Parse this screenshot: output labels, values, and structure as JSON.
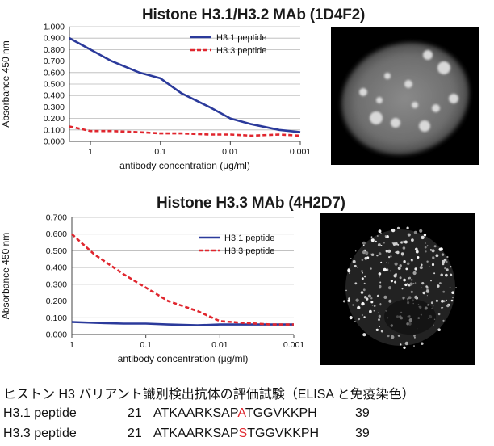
{
  "chart_data": [
    {
      "type": "line",
      "title": "Histone H3.1/H3.2 MAb (1D4F2)",
      "xlabel": "antibody concentration (μg/ml)",
      "ylabel": "Absorbance 450 nm",
      "x_scale": "log-reversed",
      "xlim": [
        2,
        0.001
      ],
      "ylim": [
        0,
        1.0
      ],
      "x_ticks": [
        "1",
        "0.1",
        "0.01",
        "0.001"
      ],
      "y_ticks": [
        "0.000",
        "0.100",
        "0.200",
        "0.300",
        "0.400",
        "0.500",
        "0.600",
        "0.700",
        "0.800",
        "0.900",
        "1.000"
      ],
      "grid": "horizontal",
      "legend_position": "top-right",
      "x": [
        2,
        1,
        0.5,
        0.2,
        0.1,
        0.05,
        0.02,
        0.01,
        0.005,
        0.002,
        0.001
      ],
      "series": [
        {
          "name": "H3.1 peptide",
          "color": "#2b3a9b",
          "style": "solid",
          "values": [
            0.9,
            0.8,
            0.7,
            0.6,
            0.55,
            0.42,
            0.3,
            0.2,
            0.15,
            0.1,
            0.08
          ]
        },
        {
          "name": "H3.3 peptide",
          "color": "#e0262e",
          "style": "dashed",
          "values": [
            0.13,
            0.09,
            0.09,
            0.08,
            0.07,
            0.07,
            0.06,
            0.06,
            0.05,
            0.06,
            0.05
          ]
        }
      ]
    },
    {
      "type": "line",
      "title": "Histone H3.3 MAb (4H2D7)",
      "xlabel": "antibody concentration (μg/ml)",
      "ylabel": "Absorbance 450 nm",
      "x_scale": "log-reversed",
      "xlim": [
        1,
        0.001
      ],
      "ylim": [
        0,
        0.7
      ],
      "x_ticks": [
        "1",
        "0.1",
        "0.01",
        "0.001"
      ],
      "y_ticks": [
        "0.000",
        "0.100",
        "0.200",
        "0.300",
        "0.400",
        "0.500",
        "0.600",
        "0.700"
      ],
      "grid": "horizontal",
      "legend_position": "top-right",
      "x": [
        1,
        0.5,
        0.2,
        0.1,
        0.05,
        0.02,
        0.01,
        0.005,
        0.002,
        0.001
      ],
      "series": [
        {
          "name": "H3.1 peptide",
          "color": "#2b3a9b",
          "style": "solid",
          "values": [
            0.075,
            0.07,
            0.065,
            0.065,
            0.06,
            0.055,
            0.06,
            0.06,
            0.06,
            0.06
          ]
        },
        {
          "name": "H3.3 peptide",
          "color": "#e0262e",
          "style": "dashed",
          "values": [
            0.6,
            0.48,
            0.36,
            0.28,
            0.2,
            0.14,
            0.08,
            0.07,
            0.06,
            0.06
          ]
        }
      ]
    }
  ],
  "caption": "ヒストン H3 バリアント識別検出抗体の評価試験（ELISA と免疫染色）",
  "sequences": [
    {
      "name": "H3.1 peptide",
      "start": "21",
      "before": "ATKAARKSAP",
      "mutation": "A",
      "after": "TGGVKKPH",
      "end": "39"
    },
    {
      "name": "H3.3 peptide",
      "start": "21",
      "before": "ATKAARKSAP",
      "mutation": "S",
      "after": "TGGVKKPH",
      "end": "39"
    }
  ]
}
